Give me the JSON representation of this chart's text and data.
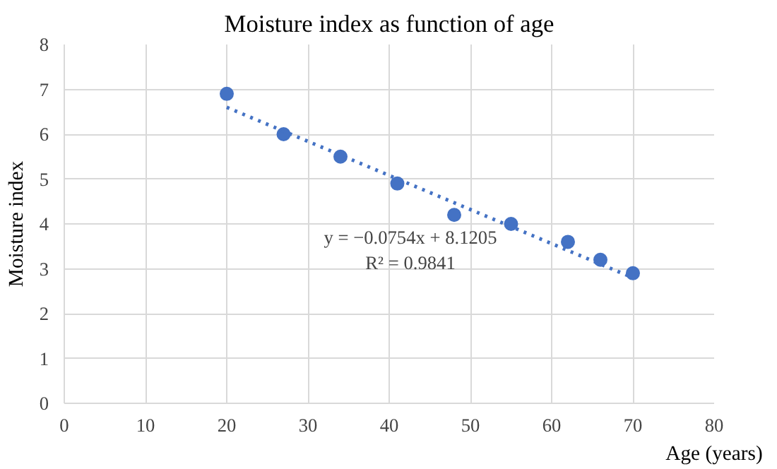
{
  "chart_data": {
    "type": "scatter",
    "title": "Moisture index as function of age",
    "xlabel": "Age (years)",
    "ylabel": "Moisture index",
    "xlim": [
      0,
      80
    ],
    "xticks": [
      0,
      10,
      20,
      30,
      40,
      50,
      60,
      70,
      80
    ],
    "ylim": [
      0,
      8
    ],
    "yticks": [
      0,
      1,
      2,
      3,
      4,
      5,
      6,
      7,
      8
    ],
    "grid": true,
    "series": [
      {
        "color": "#4472c4",
        "marker": "circle",
        "x": [
          20,
          27,
          34,
          41,
          48,
          55,
          62,
          66,
          70
        ],
        "values": [
          6.9,
          6.0,
          5.5,
          4.9,
          4.2,
          4.0,
          3.6,
          3.2,
          2.9
        ]
      },
      {
        "type": "line",
        "color": "#4472c4",
        "line_style": "dotted",
        "x": [
          20,
          70
        ],
        "values": [
          6.6,
          2.8
        ]
      }
    ],
    "annotations": [
      "y = −0.0754x + 8.1205",
      "R² = 0.9841"
    ]
  }
}
